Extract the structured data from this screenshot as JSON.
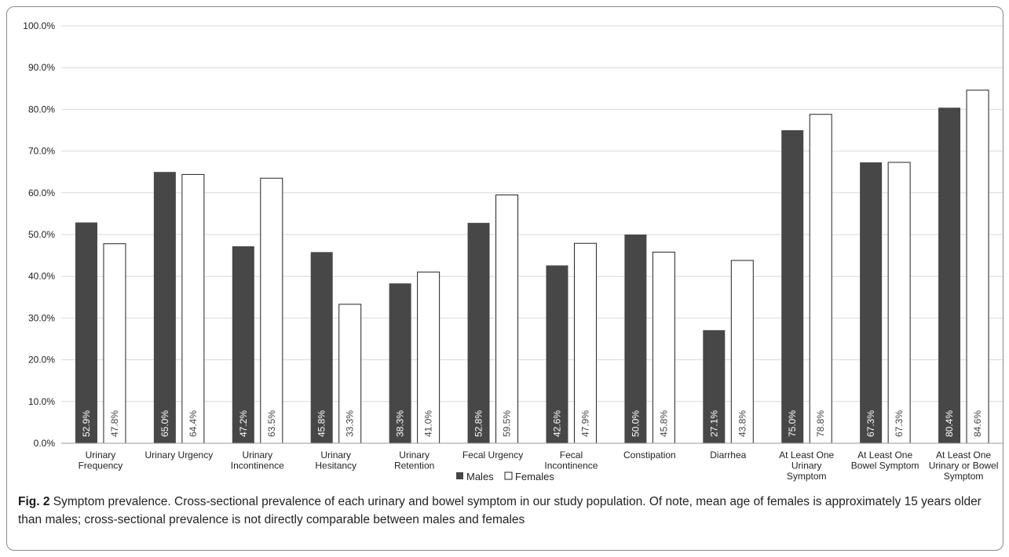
{
  "chart_data": {
    "type": "bar",
    "categories": [
      [
        "Urinary",
        "Frequency"
      ],
      [
        "Urinary Urgency"
      ],
      [
        "Urinary",
        "Incontinence"
      ],
      [
        "Urinary",
        "Hesitancy"
      ],
      [
        "Urinary",
        "Retention"
      ],
      [
        "Fecal Urgency"
      ],
      [
        "Fecal",
        "Incontinence"
      ],
      [
        "Constipation"
      ],
      [
        "Diarrhea"
      ],
      [
        "At Least One",
        "Urinary",
        "Symptom"
      ],
      [
        "At Least One",
        "Bowel Symptom"
      ],
      [
        "At Least One",
        "Urinary or Bowel",
        "Symptom"
      ]
    ],
    "series": [
      {
        "name": "Males",
        "values": [
          52.9,
          65.0,
          47.2,
          45.8,
          38.3,
          52.8,
          42.6,
          50.0,
          27.1,
          75.0,
          67.3,
          80.4
        ],
        "labels": [
          "52.9%",
          "65.0%",
          "47.2%",
          "45.8%",
          "38.3%",
          "52.8%",
          "42.6%",
          "50.0%",
          "27.1%",
          "75.0%",
          "67.3%",
          "80.4%"
        ],
        "color": "#474747"
      },
      {
        "name": "Females",
        "values": [
          47.8,
          64.4,
          63.5,
          33.3,
          41.0,
          59.5,
          47.9,
          45.8,
          43.8,
          78.8,
          67.3,
          84.6
        ],
        "labels": [
          "47.8%",
          "64.4%",
          "63.5%",
          "33.3%",
          "41.0%",
          "59.5%",
          "47.9%",
          "45.8%",
          "43.8%",
          "78.8%",
          "67.3%",
          "84.6%"
        ],
        "color": "#ffffff"
      }
    ],
    "yticks": [
      "0.0%",
      "10.0%",
      "20.0%",
      "30.0%",
      "40.0%",
      "50.0%",
      "60.0%",
      "70.0%",
      "80.0%",
      "90.0%",
      "100.0%"
    ],
    "ylim": [
      0,
      100
    ],
    "grid": true,
    "legend_position": "bottom-center"
  },
  "caption": {
    "label": "Fig. 2",
    "text": "Symptom prevalence. Cross-sectional prevalence of each urinary and bowel symptom in our study population. Of note, mean age of females is approximately 15 years older than males; cross-sectional prevalence is not directly comparable between males and females"
  }
}
